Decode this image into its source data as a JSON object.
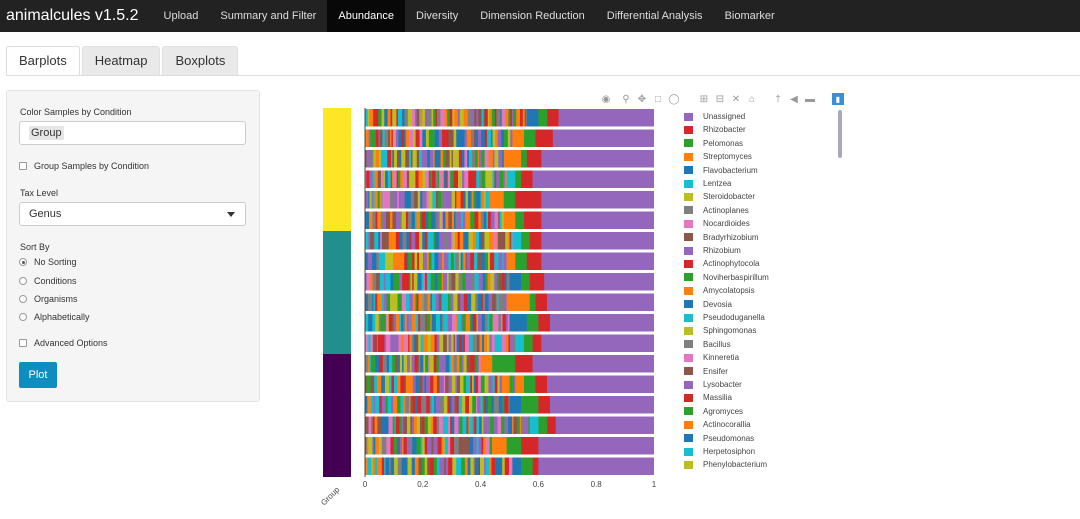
{
  "navbar": {
    "brand": "animalcules v1.5.2",
    "items": [
      "Upload",
      "Summary and Filter",
      "Abundance",
      "Diversity",
      "Dimension Reduction",
      "Differential Analysis",
      "Biomarker"
    ],
    "active": 2
  },
  "tabs": {
    "items": [
      "Barplots",
      "Heatmap",
      "Boxplots"
    ],
    "active": 0
  },
  "sidebar": {
    "color_label": "Color Samples by Condition",
    "color_value": "Group",
    "group_checkbox": "Group Samples by Condition",
    "tax_label": "Tax Level",
    "tax_value": "Genus",
    "sort_label": "Sort By",
    "sort_options": [
      "No Sorting",
      "Conditions",
      "Organisms",
      "Alphabetically"
    ],
    "sort_selected": 0,
    "advanced": "Advanced Options",
    "plot_button": "Plot"
  },
  "modebar_icons": [
    "camera-icon",
    "zoom-icon",
    "pan-icon",
    "box-select-icon",
    "lasso-icon",
    "zoom-in-icon",
    "zoom-out-icon",
    "autoscale-icon",
    "reset-axes-icon",
    "spike-lines-icon",
    "hover-closest-icon",
    "hover-compare-icon",
    "plotly-logo-icon"
  ],
  "chart_data": {
    "type": "bar",
    "orientation": "horizontal",
    "stacked": true,
    "n_samples": 18,
    "x_ticks": [
      "0",
      "0.2",
      "0.4",
      "0.6",
      "0.8",
      "1"
    ],
    "xlim": [
      0,
      1
    ],
    "group_axis_label": "Group",
    "groups": [
      {
        "color": "#fde725",
        "samples": 6
      },
      {
        "color": "#21908c",
        "samples": 6
      },
      {
        "color": "#440154",
        "samples": 6
      }
    ],
    "legend": [
      {
        "name": "Unassigned",
        "color": "#9467bd"
      },
      {
        "name": "Rhizobacter",
        "color": "#d62728"
      },
      {
        "name": "Pelomonas",
        "color": "#2ca02c"
      },
      {
        "name": "Streptomyces",
        "color": "#ff7f0e"
      },
      {
        "name": "Flavobacterium",
        "color": "#1f77b4"
      },
      {
        "name": "Lentzea",
        "color": "#17becf"
      },
      {
        "name": "Steroidobacter",
        "color": "#bcbd22"
      },
      {
        "name": "Actinoplanes",
        "color": "#7f7f7f"
      },
      {
        "name": "Nocardioides",
        "color": "#e377c2"
      },
      {
        "name": "Bradyrhizobium",
        "color": "#8c564b"
      },
      {
        "name": "Rhizobium",
        "color": "#9467bd"
      },
      {
        "name": "Actinophytocola",
        "color": "#d62728"
      },
      {
        "name": "Noviherbaspirillum",
        "color": "#2ca02c"
      },
      {
        "name": "Amycolatopsis",
        "color": "#ff7f0e"
      },
      {
        "name": "Devosia",
        "color": "#1f77b4"
      },
      {
        "name": "Pseudoduganella",
        "color": "#17becf"
      },
      {
        "name": "Sphingomonas",
        "color": "#bcbd22"
      },
      {
        "name": "Bacillus",
        "color": "#7f7f7f"
      },
      {
        "name": "Kinneretia",
        "color": "#e377c2"
      },
      {
        "name": "Ensifer",
        "color": "#8c564b"
      },
      {
        "name": "Lysobacter",
        "color": "#9467bd"
      },
      {
        "name": "Massilia",
        "color": "#d62728"
      },
      {
        "name": "Agromyces",
        "color": "#2ca02c"
      },
      {
        "name": "Actinocorallia",
        "color": "#ff7f0e"
      },
      {
        "name": "Pseudomonas",
        "color": "#1f77b4"
      },
      {
        "name": "Herpetosiphon",
        "color": "#17becf"
      },
      {
        "name": "Phenylobacterium",
        "color": "#bcbd22"
      }
    ],
    "unassigned_start": [
      0.67,
      0.65,
      0.61,
      0.58,
      0.61,
      0.61,
      0.61,
      0.61,
      0.62,
      0.63,
      0.64,
      0.61,
      0.58,
      0.63,
      0.64,
      0.66,
      0.6,
      0.6
    ],
    "major_segments": [
      [
        {
          "c": "#1f77b4",
          "w": 0.04
        },
        {
          "c": "#2ca02c",
          "w": 0.03
        },
        {
          "c": "#d62728",
          "w": 0.04
        }
      ],
      [
        {
          "c": "#ff7f0e",
          "w": 0.04
        },
        {
          "c": "#2ca02c",
          "w": 0.04
        },
        {
          "c": "#d62728",
          "w": 0.06
        }
      ],
      [
        {
          "c": "#ff7f0e",
          "w": 0.06
        },
        {
          "c": "#2ca02c",
          "w": 0.02
        },
        {
          "c": "#d62728",
          "w": 0.05
        }
      ],
      [
        {
          "c": "#17becf",
          "w": 0.03
        },
        {
          "c": "#2ca02c",
          "w": 0.02
        },
        {
          "c": "#d62728",
          "w": 0.04
        }
      ],
      [
        {
          "c": "#ff7f0e",
          "w": 0.04
        },
        {
          "c": "#2ca02c",
          "w": 0.04
        },
        {
          "c": "#d62728",
          "w": 0.09
        }
      ],
      [
        {
          "c": "#ff7f0e",
          "w": 0.04
        },
        {
          "c": "#2ca02c",
          "w": 0.03
        },
        {
          "c": "#d62728",
          "w": 0.06
        }
      ],
      [
        {
          "c": "#17becf",
          "w": 0.03
        },
        {
          "c": "#2ca02c",
          "w": 0.03
        },
        {
          "c": "#d62728",
          "w": 0.04
        }
      ],
      [
        {
          "c": "#ff7f0e",
          "w": 0.03
        },
        {
          "c": "#2ca02c",
          "w": 0.04
        },
        {
          "c": "#d62728",
          "w": 0.05
        }
      ],
      [
        {
          "c": "#1f77b4",
          "w": 0.04
        },
        {
          "c": "#2ca02c",
          "w": 0.03
        },
        {
          "c": "#d62728",
          "w": 0.05
        }
      ],
      [
        {
          "c": "#ff7f0e",
          "w": 0.08
        },
        {
          "c": "#2ca02c",
          "w": 0.02
        },
        {
          "c": "#d62728",
          "w": 0.04
        }
      ],
      [
        {
          "c": "#1f77b4",
          "w": 0.06
        },
        {
          "c": "#2ca02c",
          "w": 0.04
        },
        {
          "c": "#d62728",
          "w": 0.04
        }
      ],
      [
        {
          "c": "#17becf",
          "w": 0.03
        },
        {
          "c": "#2ca02c",
          "w": 0.03
        },
        {
          "c": "#d62728",
          "w": 0.03
        }
      ],
      [
        {
          "c": "#ff7f0e",
          "w": 0.04
        },
        {
          "c": "#2ca02c",
          "w": 0.08
        },
        {
          "c": "#d62728",
          "w": 0.06
        }
      ],
      [
        {
          "c": "#ff7f0e",
          "w": 0.03
        },
        {
          "c": "#2ca02c",
          "w": 0.04
        },
        {
          "c": "#d62728",
          "w": 0.04
        }
      ],
      [
        {
          "c": "#1f77b4",
          "w": 0.04
        },
        {
          "c": "#2ca02c",
          "w": 0.06
        },
        {
          "c": "#d62728",
          "w": 0.04
        }
      ],
      [
        {
          "c": "#17becf",
          "w": 0.03
        },
        {
          "c": "#2ca02c",
          "w": 0.03
        },
        {
          "c": "#d62728",
          "w": 0.03
        }
      ],
      [
        {
          "c": "#ff7f0e",
          "w": 0.04
        },
        {
          "c": "#2ca02c",
          "w": 0.05
        },
        {
          "c": "#d62728",
          "w": 0.06
        }
      ],
      [
        {
          "c": "#1f77b4",
          "w": 0.03
        },
        {
          "c": "#2ca02c",
          "w": 0.04
        },
        {
          "c": "#d62728",
          "w": 0.02
        }
      ]
    ]
  }
}
